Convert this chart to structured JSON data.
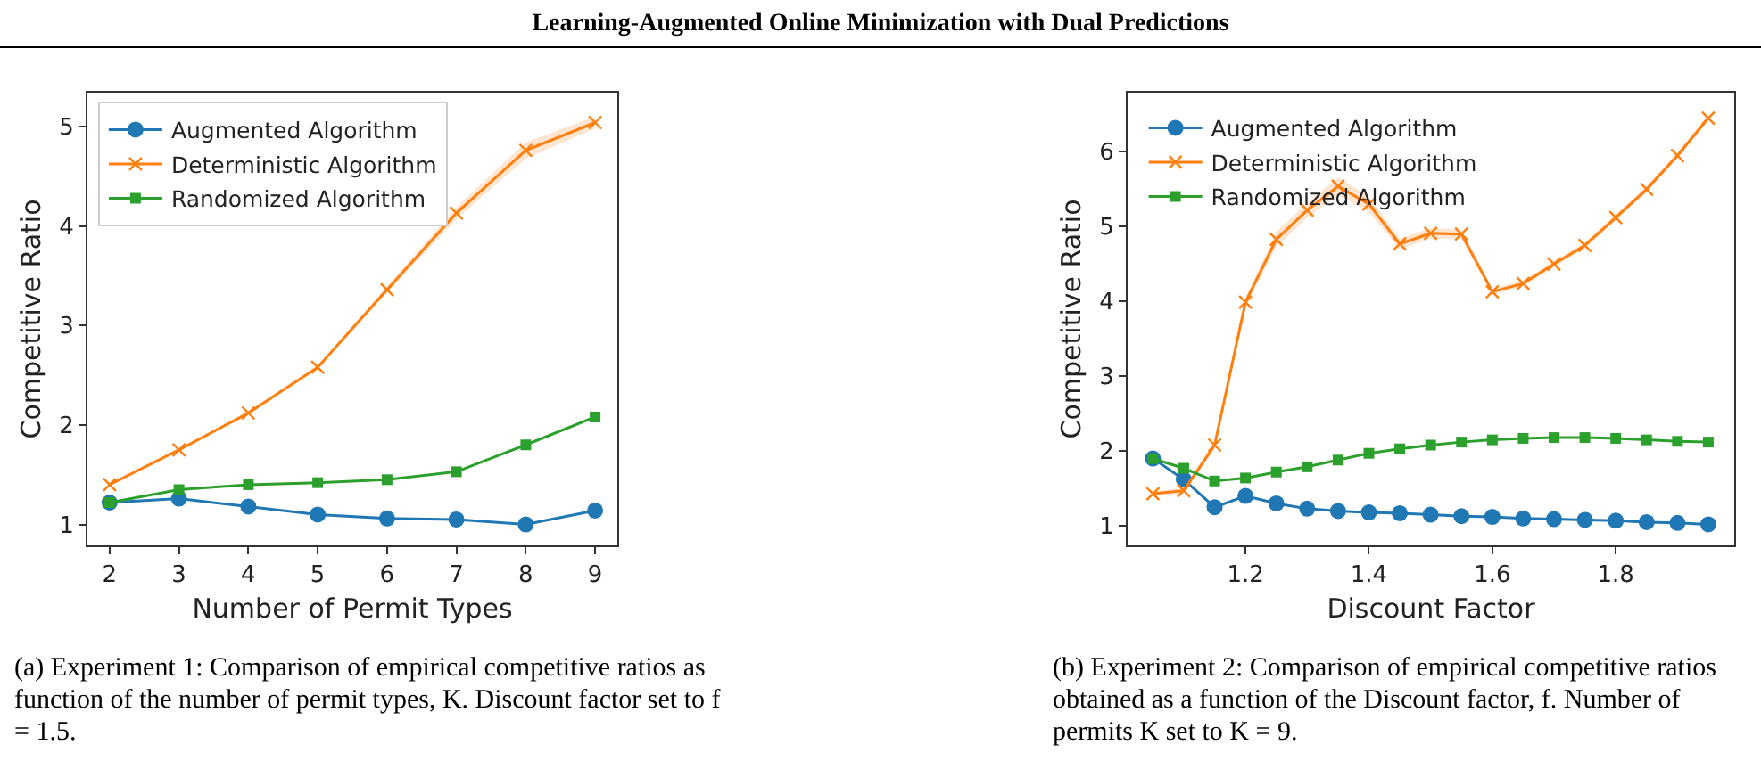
{
  "chart_data": [
    {
      "type": "line",
      "title": "Learning-Augmented Online Minimization with Dual Predictions",
      "xlabel": "Number of Permit Types",
      "ylabel": "Competitive Ratio",
      "x": [
        2,
        3,
        4,
        5,
        6,
        7,
        8,
        9
      ],
      "series": [
        {
          "name": "Augmented Algorithm",
          "color": "#1f77b4",
          "marker": "circle",
          "values": [
            1.22,
            1.26,
            1.18,
            1.1,
            1.06,
            1.05,
            1.0,
            1.14
          ]
        },
        {
          "name": "Deterministic Algorithm",
          "color": "#ff7f0e",
          "marker": "cross",
          "values": [
            1.4,
            1.75,
            2.12,
            2.58,
            3.36,
            4.13,
            4.76,
            5.04
          ],
          "lower": [
            1.39,
            1.74,
            2.1,
            2.56,
            3.33,
            4.07,
            4.68,
            4.98
          ],
          "upper": [
            1.41,
            1.76,
            2.14,
            2.6,
            3.39,
            4.19,
            4.84,
            5.1
          ]
        },
        {
          "name": "Randomized Algorithm",
          "color": "#2ca02c",
          "marker": "square",
          "values": [
            1.22,
            1.35,
            1.4,
            1.42,
            1.45,
            1.53,
            1.8,
            2.08
          ]
        }
      ],
      "xlim": [
        1.68,
        9.32
      ],
      "xticks": [
        2,
        3,
        4,
        5,
        6,
        7,
        8,
        9
      ],
      "ylim": [
        0.79,
        5.34
      ],
      "yticks": [
        1,
        2,
        3,
        4,
        5
      ],
      "legend": "top left",
      "grid": false,
      "line_style": "solid",
      "annotations": [
        "(a) Experiment 1: Comparison of empirical competitive ratios as function of the number of permit types, K. Discount factor set to f = 1.5."
      ]
    },
    {
      "type": "line",
      "xlabel": "Discount Factor",
      "ylabel": "Competitive Ratio",
      "x": [
        1.05,
        1.1,
        1.15,
        1.2,
        1.25,
        1.3,
        1.35,
        1.4,
        1.45,
        1.5,
        1.55,
        1.6,
        1.65,
        1.7,
        1.75,
        1.8,
        1.85,
        1.9,
        1.95
      ],
      "series": [
        {
          "name": "Augmented Algorithm",
          "color": "#1f77b4",
          "marker": "circle",
          "values": [
            1.9,
            1.62,
            1.25,
            1.4,
            1.3,
            1.23,
            1.2,
            1.18,
            1.17,
            1.15,
            1.13,
            1.12,
            1.1,
            1.09,
            1.08,
            1.07,
            1.05,
            1.04,
            1.02
          ]
        },
        {
          "name": "Deterministic Algorithm",
          "color": "#ff7f0e",
          "marker": "cross",
          "values": [
            1.43,
            1.47,
            2.08,
            3.99,
            4.83,
            5.22,
            5.54,
            5.3,
            4.77,
            4.91,
            4.9,
            4.13,
            4.24,
            4.5,
            4.75,
            5.12,
            5.5,
            5.95,
            6.45
          ],
          "lower": [
            1.4,
            1.43,
            2.03,
            3.93,
            4.73,
            5.12,
            5.42,
            5.2,
            4.7,
            4.84,
            4.84,
            4.09,
            4.2,
            4.46,
            4.71,
            5.08,
            5.46,
            5.91,
            6.41
          ],
          "upper": [
            1.46,
            1.51,
            2.13,
            4.05,
            4.93,
            5.32,
            5.66,
            5.4,
            4.84,
            4.98,
            4.96,
            4.17,
            4.28,
            4.54,
            4.79,
            5.16,
            5.54,
            5.99,
            6.49
          ]
        },
        {
          "name": "Randomized Algorithm",
          "color": "#2ca02c",
          "marker": "square",
          "values": [
            1.9,
            1.77,
            1.6,
            1.64,
            1.72,
            1.79,
            1.88,
            1.97,
            2.03,
            2.08,
            2.12,
            2.15,
            2.17,
            2.18,
            2.18,
            2.17,
            2.15,
            2.13,
            2.12
          ]
        }
      ],
      "xlim": [
        1.009,
        1.992
      ],
      "xticks": [
        1.2,
        1.4,
        1.6,
        1.8
      ],
      "ylim": [
        0.74,
        6.79
      ],
      "yticks": [
        1,
        2,
        3,
        4,
        5,
        6
      ],
      "legend": "top left",
      "grid": false,
      "line_style": "solid",
      "annotations": [
        "(b) Experiment 2: Comparison of empirical competitive ratios obtained as a function of the Discount factor, f. Number of permits K set to K = 9."
      ]
    }
  ]
}
